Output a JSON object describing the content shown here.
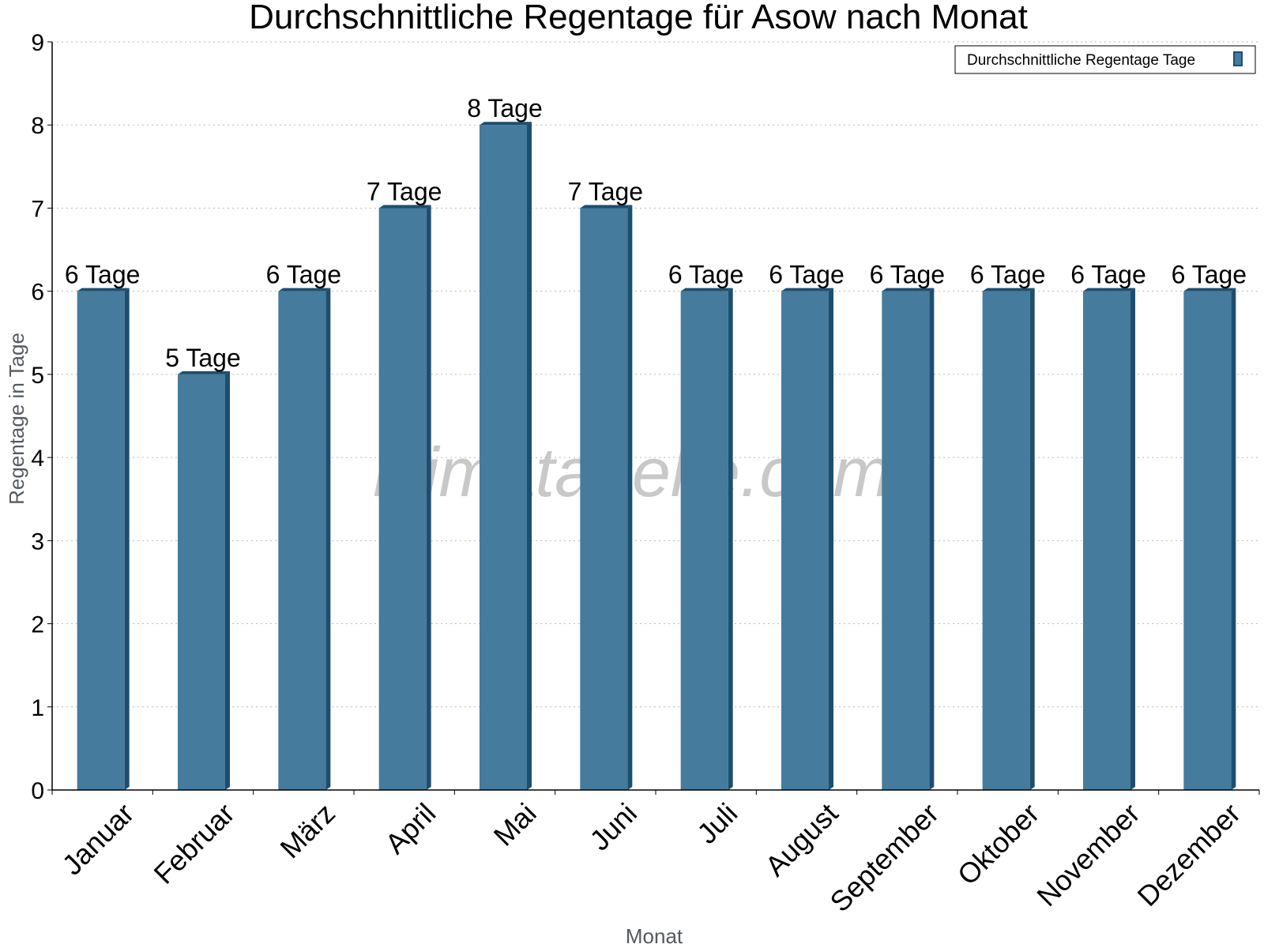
{
  "chart_data": {
    "type": "bar",
    "title": "Durchschnittliche Regentage für Asow nach Monat",
    "xlabel": "Monat",
    "ylabel": "Regentage in Tage",
    "categories": [
      "Januar",
      "Februar",
      "März",
      "April",
      "Mai",
      "Juni",
      "Juli",
      "August",
      "September",
      "Oktober",
      "November",
      "Dezember"
    ],
    "series": [
      {
        "name": "Durchschnittliche Regentage Tage",
        "values": [
          6,
          5,
          6,
          7,
          8,
          7,
          6,
          6,
          6,
          6,
          6,
          6
        ],
        "data_labels": [
          "6 Tage",
          "5 Tage",
          "6 Tage",
          "7 Tage",
          "8 Tage",
          "7 Tage",
          "6 Tage",
          "6 Tage",
          "6 Tage",
          "6 Tage",
          "6 Tage",
          "6 Tage"
        ]
      }
    ],
    "ylim": [
      0,
      9
    ],
    "yticks": [
      0,
      1,
      2,
      3,
      4,
      5,
      6,
      7,
      8,
      9
    ],
    "grid": true,
    "legend_position": "top-right",
    "bar_color": "#457b9d",
    "bar_side_color": "#1d4e6e",
    "watermark": "klimatabelle.com"
  }
}
